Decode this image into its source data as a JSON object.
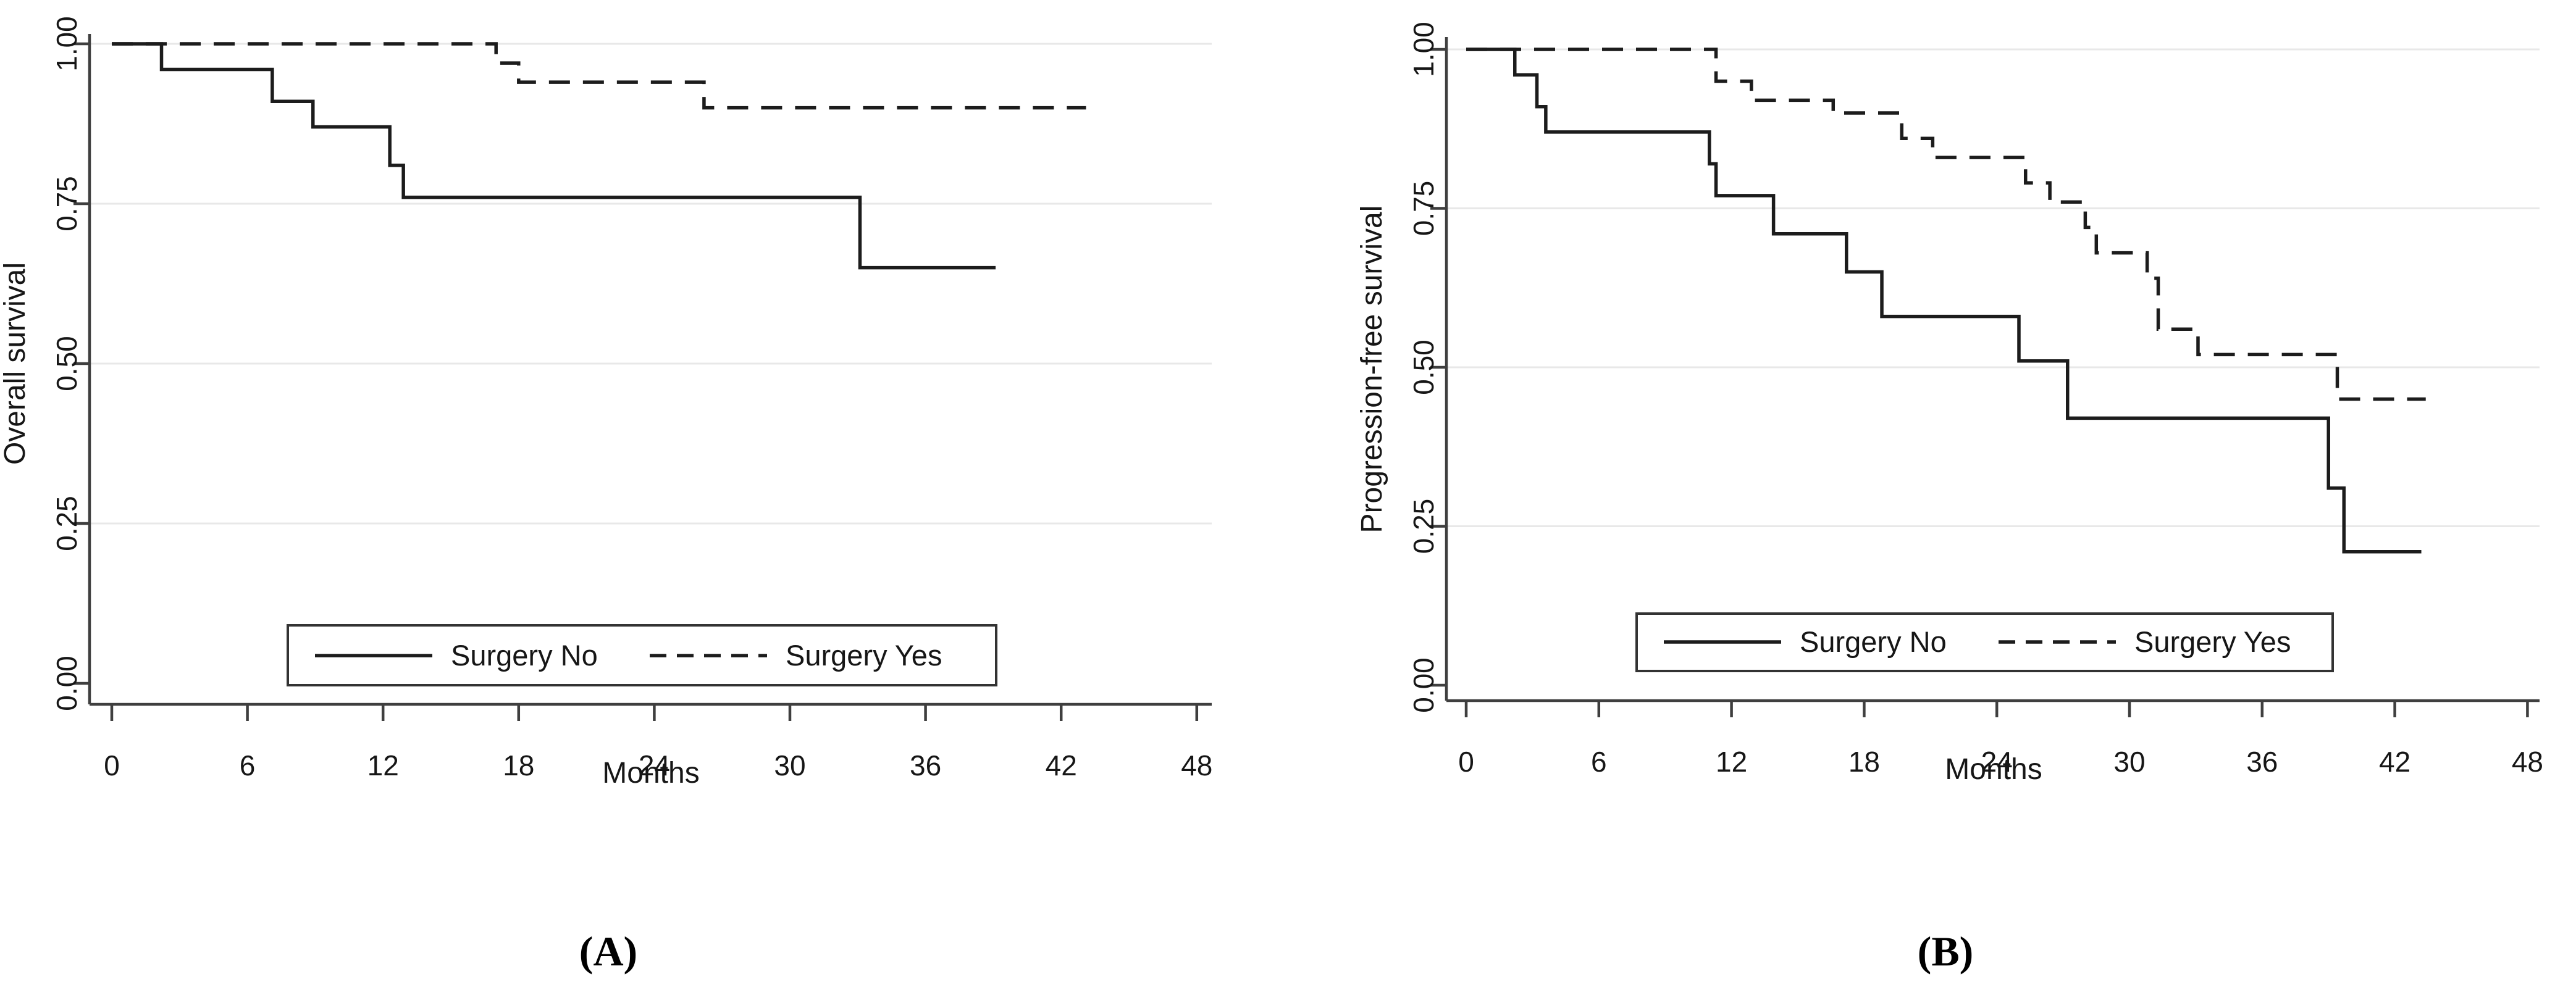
{
  "figure": {
    "background": "#ffffff",
    "panels": [
      {
        "id": "A",
        "caption": "(A)",
        "ylabel": "Overall survival",
        "xlabel": "Months",
        "legend": [
          {
            "label": "Surgery No",
            "style": "solid"
          },
          {
            "label": "Surgery Yes",
            "style": "dashed"
          }
        ]
      },
      {
        "id": "B",
        "caption": "(B)",
        "ylabel": "Progression-free survival",
        "xlabel": "Months",
        "legend": [
          {
            "label": "Surgery No",
            "style": "solid"
          },
          {
            "label": "Surgery Yes",
            "style": "dashed"
          }
        ]
      }
    ],
    "colors": {
      "curve": "#1c1c1c",
      "axis": "#3f3f3f",
      "grid": "#e8e8e8",
      "legend_border": "#333333",
      "text": "#161616"
    }
  },
  "chart_data": [
    {
      "type": "line",
      "subtype": "kaplan-meier-step",
      "title": "(A)",
      "xlabel": "Months",
      "ylabel": "Overall survival",
      "xlim": [
        0,
        48
      ],
      "ylim": [
        0.0,
        1.0
      ],
      "xticks": [
        0,
        6,
        12,
        18,
        24,
        30,
        36,
        42,
        48
      ],
      "ytick_labels": [
        "0.00",
        "0.25",
        "0.50",
        "0.75",
        "1.00"
      ],
      "ytick_values": [
        0.0,
        0.25,
        0.5,
        0.75,
        1.0
      ],
      "grid": "horizontal",
      "legend_position": "inside-bottom-center-box",
      "series": [
        {
          "name": "Surgery No",
          "line": "solid",
          "end_x": 39.1,
          "steps": [
            [
              0,
              1.0
            ],
            [
              2.2,
              0.96
            ],
            [
              7.1,
              0.91
            ],
            [
              8.9,
              0.87
            ],
            [
              12.3,
              0.81
            ],
            [
              12.9,
              0.76
            ],
            [
              33.1,
              0.65
            ]
          ]
        },
        {
          "name": "Surgery Yes",
          "line": "dashed",
          "end_x": 43.1,
          "steps": [
            [
              0,
              1.0
            ],
            [
              17.0,
              0.97
            ],
            [
              18.0,
              0.94
            ],
            [
              26.2,
              0.9
            ]
          ]
        }
      ]
    },
    {
      "type": "line",
      "subtype": "kaplan-meier-step",
      "title": "(B)",
      "xlabel": "Months",
      "ylabel": "Progression-free survival",
      "xlim": [
        0,
        48
      ],
      "ylim": [
        0.0,
        1.0
      ],
      "xticks": [
        0,
        6,
        12,
        18,
        24,
        30,
        36,
        42,
        48
      ],
      "ytick_labels": [
        "0.00",
        "0.25",
        "0.50",
        "0.75",
        "1.00"
      ],
      "ytick_values": [
        0.0,
        0.25,
        0.5,
        0.75,
        1.0
      ],
      "grid": "horizontal",
      "legend_position": "inside-bottom-center-box",
      "series": [
        {
          "name": "Surgery No",
          "line": "solid",
          "end_x": 43.2,
          "steps": [
            [
              0,
              1.0
            ],
            [
              2.2,
              0.96
            ],
            [
              3.2,
              0.91
            ],
            [
              3.6,
              0.87
            ],
            [
              11.0,
              0.82
            ],
            [
              11.3,
              0.77
            ],
            [
              13.9,
              0.71
            ],
            [
              17.2,
              0.65
            ],
            [
              18.8,
              0.58
            ],
            [
              25.0,
              0.51
            ],
            [
              27.2,
              0.42
            ],
            [
              39.0,
              0.31
            ],
            [
              39.7,
              0.21
            ]
          ]
        },
        {
          "name": "Surgery Yes",
          "line": "dashed",
          "end_x": 43.4,
          "steps": [
            [
              0,
              1.0
            ],
            [
              11.3,
              0.95
            ],
            [
              12.9,
              0.92
            ],
            [
              16.6,
              0.9
            ],
            [
              19.7,
              0.86
            ],
            [
              21.1,
              0.83
            ],
            [
              25.3,
              0.79
            ],
            [
              26.4,
              0.76
            ],
            [
              28.0,
              0.72
            ],
            [
              28.5,
              0.68
            ],
            [
              30.8,
              0.64
            ],
            [
              31.3,
              0.56
            ],
            [
              33.1,
              0.52
            ],
            [
              39.4,
              0.45
            ]
          ]
        }
      ]
    }
  ]
}
